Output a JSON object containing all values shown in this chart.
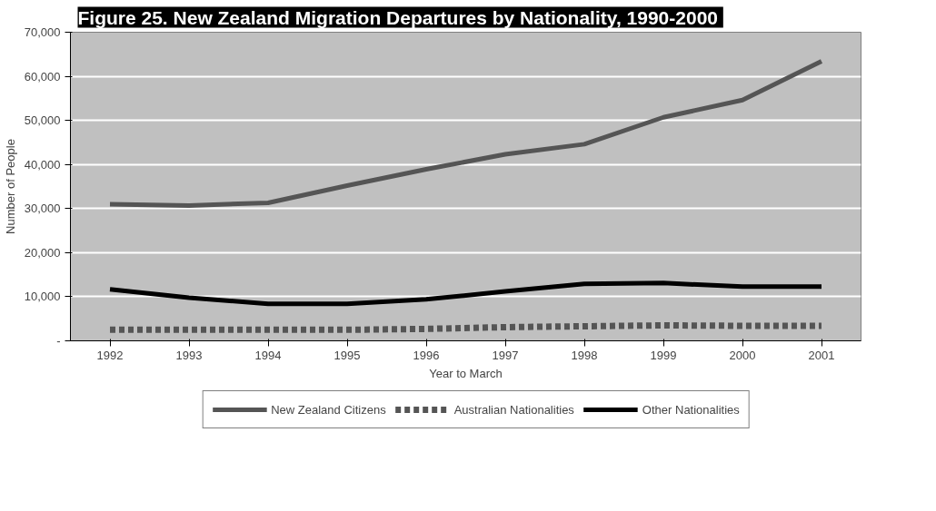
{
  "chart_data": {
    "type": "line",
    "title": "Figure 25.  New Zealand Migration Departures by Nationality, 1990-2000",
    "xlabel": "Year to March",
    "ylabel": "Number of People",
    "categories": [
      "1992",
      "1993",
      "1994",
      "1995",
      "1996",
      "1997",
      "1998",
      "1999",
      "2000",
      "2001"
    ],
    "series": [
      {
        "name": "New Zealand Citizens",
        "color": "#555555",
        "line_style": "solid",
        "values": [
          31000,
          30700,
          31300,
          35200,
          38900,
          42300,
          44600,
          50700,
          54600,
          63400
        ]
      },
      {
        "name": "Australian Nationalities",
        "color": "#555555",
        "line_style": "dashed",
        "values": [
          2500,
          2500,
          2500,
          2500,
          2700,
          3100,
          3300,
          3500,
          3400,
          3400
        ]
      },
      {
        "name": "Other Nationalities",
        "color": "#000000",
        "line_style": "solid",
        "values": [
          11700,
          9800,
          8400,
          8400,
          9400,
          11200,
          12900,
          13100,
          12300,
          12300
        ]
      }
    ],
    "ylim": [
      0,
      70000
    ],
    "yticks": [
      {
        "value": 0,
        "label": "-"
      },
      {
        "value": 10000,
        "label": "10,000"
      },
      {
        "value": 20000,
        "label": "20,000"
      },
      {
        "value": 30000,
        "label": "30,000"
      },
      {
        "value": 40000,
        "label": "40,000"
      },
      {
        "value": 50000,
        "label": "50,000"
      },
      {
        "value": 60000,
        "label": "60,000"
      },
      {
        "value": 70000,
        "label": "70,000"
      }
    ],
    "grid": "y",
    "legend": "bottom",
    "marker": "none"
  }
}
